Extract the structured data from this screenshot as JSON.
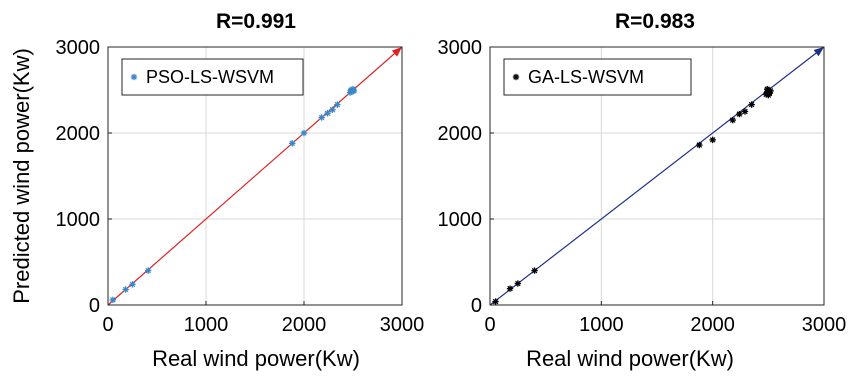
{
  "chart_data": [
    {
      "type": "scatter",
      "title": "R=0.991",
      "xlabel": "Real wind power(Kw)",
      "ylabel": "Predicted wind power(Kw)",
      "xlim": [
        0,
        3000
      ],
      "ylim": [
        0,
        3000
      ],
      "xticks": [
        "0",
        "1000",
        "2000",
        "3000"
      ],
      "yticks": [
        "0",
        "1000",
        "2000",
        "3000"
      ],
      "grid": true,
      "legend_position": "top-left",
      "series": [
        {
          "name": "PSO-LS-WSVM",
          "marker": "*",
          "color": "#3a87c8",
          "x": [
            50,
            180,
            250,
            410,
            1880,
            2000,
            2180,
            2240,
            2290,
            2340,
            2470,
            2480,
            2490,
            2500,
            2500,
            2510,
            2480
          ],
          "y": [
            60,
            180,
            240,
            400,
            1880,
            2000,
            2180,
            2230,
            2270,
            2330,
            2470,
            2490,
            2480,
            2500,
            2510,
            2490,
            2500
          ]
        }
      ],
      "reference_line": {
        "from": [
          0,
          0
        ],
        "to": [
          3000,
          3000
        ],
        "color": "#e02020",
        "arrow": true
      }
    },
    {
      "type": "scatter",
      "title": "R=0.983",
      "xlabel": "Real wind power(Kw)",
      "ylabel": "",
      "xlim": [
        0,
        3000
      ],
      "ylim": [
        0,
        3000
      ],
      "xticks": [
        "0",
        "1000",
        "2000",
        "3000"
      ],
      "yticks": [
        "0",
        "1000",
        "2000",
        "3000"
      ],
      "grid": true,
      "legend_position": "top-left",
      "series": [
        {
          "name": "GA-LS-WSVM",
          "marker": "*",
          "color": "#000000",
          "x": [
            50,
            180,
            250,
            400,
            1880,
            2000,
            2180,
            2240,
            2290,
            2350,
            2480,
            2490,
            2500,
            2510,
            2520,
            2490,
            2500,
            2510
          ],
          "y": [
            40,
            190,
            250,
            400,
            1860,
            1920,
            2150,
            2220,
            2250,
            2330,
            2450,
            2480,
            2500,
            2470,
            2490,
            2510,
            2440,
            2460
          ]
        }
      ],
      "reference_line": {
        "from": [
          0,
          0
        ],
        "to": [
          3000,
          3000
        ],
        "color": "#1c2f8c",
        "arrow": true
      }
    }
  ]
}
